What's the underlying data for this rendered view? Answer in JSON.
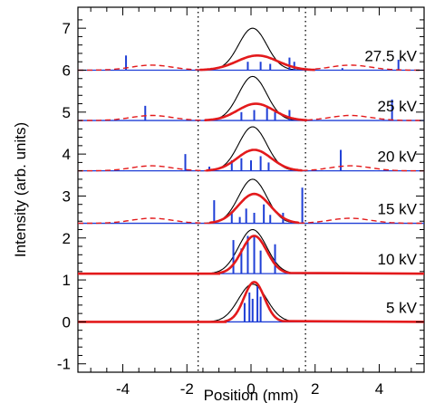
{
  "chart_data": {
    "type": "line",
    "xlabel": "Position (mm)",
    "ylabel": "Intensity (arb. units)",
    "xlim": [
      -5.4,
      5.4
    ],
    "ylim": [
      -1.2,
      7.5
    ],
    "x_ticks": [
      -4,
      -2,
      0,
      2,
      4
    ],
    "x_tick_labels": [
      "-4",
      "-2",
      "0",
      "2",
      "4"
    ],
    "y_ticks": [
      -1,
      0,
      1,
      2,
      3,
      4,
      5,
      6,
      7
    ],
    "y_tick_labels": [
      "-1",
      "0",
      "1",
      "2",
      "3",
      "4",
      "5",
      "6",
      "7"
    ],
    "vertical_dotted_lines": [
      -1.65,
      1.7
    ],
    "panels": [
      {
        "label": "5 kV",
        "baseline": 0.0,
        "ref_peak": 0.9,
        "red_center": 0.1,
        "red_width": 0.45,
        "red_peak": 0.95,
        "red_dashed_tails": false,
        "blue_spikes": [
          [
            -0.2,
            0.45
          ],
          [
            -0.05,
            0.7
          ],
          [
            0.05,
            0.55
          ],
          [
            0.2,
            0.85
          ],
          [
            0.3,
            0.6
          ]
        ]
      },
      {
        "label": "10 kV",
        "baseline": 1.15,
        "ref_peak": 2.2,
        "red_center": 0.1,
        "red_width": 0.55,
        "red_peak": 2.05,
        "red_dashed_tails": false,
        "blue_spikes": [
          [
            -0.55,
            1.95
          ],
          [
            -0.3,
            1.75
          ],
          [
            -0.1,
            2.05
          ],
          [
            0.1,
            2.05
          ],
          [
            0.3,
            1.7
          ],
          [
            0.75,
            1.85
          ]
        ]
      },
      {
        "label": "15 kV",
        "baseline": 2.35,
        "ref_peak": 3.4,
        "red_center": 0.1,
        "red_width": 0.7,
        "red_peak": 3.05,
        "red_dashed_tails": true,
        "blue_spikes": [
          [
            -1.15,
            2.9
          ],
          [
            -0.6,
            2.6
          ],
          [
            -0.35,
            2.5
          ],
          [
            -0.15,
            2.7
          ],
          [
            0.1,
            2.6
          ],
          [
            0.4,
            2.8
          ],
          [
            0.6,
            2.55
          ],
          [
            1.0,
            2.6
          ],
          [
            1.6,
            3.2
          ]
        ]
      },
      {
        "label": "20 kV",
        "baseline": 3.6,
        "ref_peak": 4.65,
        "red_center": 0.1,
        "red_width": 0.75,
        "red_peak": 4.1,
        "red_dashed_tails": true,
        "blue_spikes": [
          [
            -2.05,
            4.0
          ],
          [
            -1.3,
            3.7
          ],
          [
            -0.6,
            3.85
          ],
          [
            -0.3,
            3.9
          ],
          [
            0.0,
            3.85
          ],
          [
            0.3,
            3.95
          ],
          [
            0.55,
            3.8
          ],
          [
            2.8,
            4.1
          ]
        ]
      },
      {
        "label": "25 kV",
        "baseline": 4.8,
        "ref_peak": 5.85,
        "red_center": 0.15,
        "red_width": 0.8,
        "red_peak": 5.2,
        "red_dashed_tails": true,
        "blue_spikes": [
          [
            -3.3,
            5.15
          ],
          [
            -0.3,
            5.0
          ],
          [
            0.1,
            5.05
          ],
          [
            0.5,
            5.1
          ],
          [
            0.75,
            5.0
          ],
          [
            1.2,
            5.05
          ],
          [
            4.4,
            5.3
          ]
        ]
      },
      {
        "label": "27.5 kV",
        "baseline": 6.0,
        "ref_peak": 7.0,
        "red_center": 0.2,
        "red_width": 0.9,
        "red_peak": 6.35,
        "red_dashed_tails": true,
        "blue_spikes": [
          [
            -3.9,
            6.35
          ],
          [
            -0.1,
            6.2
          ],
          [
            0.3,
            6.2
          ],
          [
            0.6,
            6.15
          ],
          [
            1.2,
            6.3
          ],
          [
            1.35,
            6.2
          ],
          [
            2.85,
            6.05
          ],
          [
            4.6,
            6.25
          ]
        ]
      }
    ],
    "colors": {
      "reference": "#000000",
      "fit": "#e31a1c",
      "spikes": "#1f3fd6",
      "frame": "#000000"
    }
  }
}
